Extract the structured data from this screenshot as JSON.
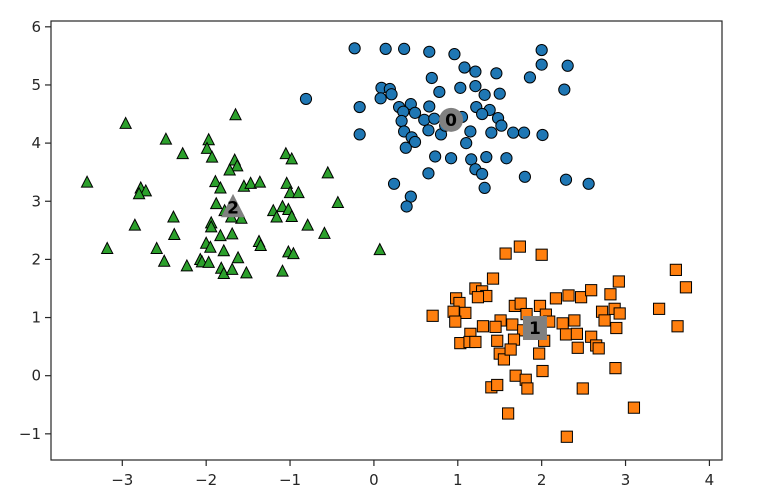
{
  "chart_data": {
    "type": "scatter",
    "title": "",
    "xlabel": "",
    "ylabel": "",
    "xlim": [
      -3.85,
      4.15
    ],
    "ylim": [
      -1.45,
      6.1
    ],
    "xticks": [
      -3,
      -2,
      -1,
      0,
      1,
      2,
      3,
      4
    ],
    "yticks": [
      -1,
      0,
      1,
      2,
      3,
      4,
      5,
      6
    ],
    "xtick_labels": [
      "−3",
      "−2",
      "−1",
      "0",
      "1",
      "2",
      "3",
      "4"
    ],
    "ytick_labels": [
      "−1",
      "0",
      "1",
      "2",
      "3",
      "4",
      "5",
      "6"
    ],
    "grid": false,
    "legend": "none",
    "series": [
      {
        "marker": "circle",
        "color": "#1f77b4",
        "points": [
          [
            -0.23,
            5.63
          ],
          [
            0.14,
            5.62
          ],
          [
            0.36,
            5.62
          ],
          [
            0.66,
            5.57
          ],
          [
            0.96,
            5.53
          ],
          [
            1.08,
            5.3
          ],
          [
            1.21,
            5.23
          ],
          [
            1.46,
            5.2
          ],
          [
            2.0,
            5.6
          ],
          [
            2.0,
            5.35
          ],
          [
            2.31,
            5.33
          ],
          [
            1.86,
            5.13
          ],
          [
            2.27,
            4.92
          ],
          [
            0.09,
            4.95
          ],
          [
            0.19,
            4.93
          ],
          [
            0.21,
            4.84
          ],
          [
            0.08,
            4.77
          ],
          [
            0.69,
            5.12
          ],
          [
            0.78,
            4.88
          ],
          [
            1.03,
            4.95
          ],
          [
            1.21,
            4.98
          ],
          [
            1.32,
            4.83
          ],
          [
            1.5,
            4.85
          ],
          [
            -0.81,
            4.76
          ],
          [
            -0.17,
            4.62
          ],
          [
            0.3,
            4.62
          ],
          [
            0.44,
            4.67
          ],
          [
            0.66,
            4.63
          ],
          [
            0.35,
            4.54
          ],
          [
            0.49,
            4.52
          ],
          [
            0.33,
            4.38
          ],
          [
            0.6,
            4.4
          ],
          [
            0.72,
            4.42
          ],
          [
            1.05,
            4.45
          ],
          [
            1.22,
            4.62
          ],
          [
            1.38,
            4.57
          ],
          [
            1.29,
            4.5
          ],
          [
            1.48,
            4.43
          ],
          [
            -0.17,
            4.15
          ],
          [
            0.36,
            4.2
          ],
          [
            0.45,
            4.1
          ],
          [
            0.49,
            4.02
          ],
          [
            0.38,
            3.92
          ],
          [
            0.65,
            4.22
          ],
          [
            0.8,
            4.15
          ],
          [
            0.85,
            4.3
          ],
          [
            1.15,
            4.2
          ],
          [
            1.1,
            4.0
          ],
          [
            1.4,
            4.18
          ],
          [
            1.52,
            4.3
          ],
          [
            1.66,
            4.18
          ],
          [
            1.79,
            4.18
          ],
          [
            2.01,
            4.14
          ],
          [
            0.73,
            3.77
          ],
          [
            0.92,
            3.74
          ],
          [
            1.16,
            3.72
          ],
          [
            1.34,
            3.76
          ],
          [
            1.58,
            3.74
          ],
          [
            0.65,
            3.48
          ],
          [
            1.21,
            3.55
          ],
          [
            1.29,
            3.47
          ],
          [
            1.8,
            3.42
          ],
          [
            2.29,
            3.37
          ],
          [
            2.56,
            3.3
          ],
          [
            0.24,
            3.3
          ],
          [
            1.32,
            3.23
          ],
          [
            0.44,
            3.08
          ],
          [
            0.39,
            2.91
          ]
        ]
      },
      {
        "marker": "square",
        "color": "#ff7f0e",
        "points": [
          [
            1.74,
            2.22
          ],
          [
            1.57,
            2.1
          ],
          [
            2.0,
            2.08
          ],
          [
            1.42,
            1.67
          ],
          [
            1.21,
            1.5
          ],
          [
            1.29,
            1.45
          ],
          [
            1.34,
            1.37
          ],
          [
            1.24,
            1.35
          ],
          [
            0.98,
            1.33
          ],
          [
            1.02,
            1.25
          ],
          [
            0.95,
            1.1
          ],
          [
            0.7,
            1.03
          ],
          [
            1.09,
            1.08
          ],
          [
            0.97,
            0.93
          ],
          [
            1.51,
            0.95
          ],
          [
            1.68,
            1.2
          ],
          [
            1.75,
            1.24
          ],
          [
            1.82,
            1.06
          ],
          [
            1.98,
            1.2
          ],
          [
            2.05,
            1.05
          ],
          [
            2.17,
            1.33
          ],
          [
            2.32,
            1.38
          ],
          [
            2.47,
            1.35
          ],
          [
            2.59,
            1.47
          ],
          [
            2.82,
            1.4
          ],
          [
            2.92,
            1.62
          ],
          [
            3.4,
            1.15
          ],
          [
            3.6,
            1.82
          ],
          [
            3.72,
            1.52
          ],
          [
            2.87,
            1.15
          ],
          [
            2.72,
            1.1
          ],
          [
            2.93,
            1.07
          ],
          [
            1.3,
            0.85
          ],
          [
            1.45,
            0.84
          ],
          [
            1.65,
            0.88
          ],
          [
            1.78,
            0.78
          ],
          [
            1.93,
            0.85
          ],
          [
            2.09,
            0.93
          ],
          [
            2.25,
            0.9
          ],
          [
            2.39,
            0.95
          ],
          [
            2.75,
            0.95
          ],
          [
            2.89,
            0.82
          ],
          [
            3.62,
            0.85
          ],
          [
            1.15,
            0.72
          ],
          [
            1.03,
            0.56
          ],
          [
            1.14,
            0.58
          ],
          [
            1.21,
            0.58
          ],
          [
            1.47,
            0.6
          ],
          [
            1.67,
            0.62
          ],
          [
            2.03,
            0.6
          ],
          [
            2.29,
            0.71
          ],
          [
            2.42,
            0.72
          ],
          [
            2.59,
            0.67
          ],
          [
            2.65,
            0.52
          ],
          [
            2.68,
            0.47
          ],
          [
            2.43,
            0.48
          ],
          [
            1.5,
            0.38
          ],
          [
            1.55,
            0.28
          ],
          [
            1.63,
            0.45
          ],
          [
            1.97,
            0.38
          ],
          [
            2.01,
            0.08
          ],
          [
            2.88,
            0.13
          ],
          [
            1.69,
            0.0
          ],
          [
            1.81,
            -0.07
          ],
          [
            1.4,
            -0.2
          ],
          [
            1.47,
            -0.16
          ],
          [
            1.83,
            -0.22
          ],
          [
            2.49,
            -0.22
          ],
          [
            3.1,
            -0.55
          ],
          [
            1.6,
            -0.65
          ],
          [
            2.3,
            -1.05
          ]
        ]
      },
      {
        "marker": "triangle",
        "color": "#2ca02c",
        "points": [
          [
            -1.65,
            4.48
          ],
          [
            -2.96,
            4.33
          ],
          [
            -2.48,
            4.06
          ],
          [
            -1.97,
            4.05
          ],
          [
            -1.99,
            3.9
          ],
          [
            -2.28,
            3.81
          ],
          [
            -1.93,
            3.75
          ],
          [
            -1.05,
            3.81
          ],
          [
            -0.98,
            3.72
          ],
          [
            -1.66,
            3.7
          ],
          [
            -1.63,
            3.6
          ],
          [
            -1.72,
            3.53
          ],
          [
            -0.55,
            3.48
          ],
          [
            -3.42,
            3.32
          ],
          [
            -2.78,
            3.22
          ],
          [
            -2.72,
            3.17
          ],
          [
            -2.8,
            3.12
          ],
          [
            -1.89,
            3.33
          ],
          [
            -1.83,
            3.22
          ],
          [
            -1.55,
            3.25
          ],
          [
            -1.47,
            3.3
          ],
          [
            -1.36,
            3.32
          ],
          [
            -1.04,
            3.3
          ],
          [
            -1.0,
            3.14
          ],
          [
            -0.9,
            3.14
          ],
          [
            -0.43,
            2.97
          ],
          [
            -1.88,
            2.95
          ],
          [
            -1.78,
            2.83
          ],
          [
            -1.94,
            2.62
          ],
          [
            -1.94,
            2.55
          ],
          [
            -1.2,
            2.83
          ],
          [
            -1.09,
            2.9
          ],
          [
            -1.16,
            2.72
          ],
          [
            -1.02,
            2.85
          ],
          [
            -0.98,
            2.73
          ],
          [
            -2.39,
            2.72
          ],
          [
            -2.85,
            2.58
          ],
          [
            -1.58,
            2.7
          ],
          [
            -1.7,
            2.72
          ],
          [
            -0.79,
            2.58
          ],
          [
            -0.59,
            2.44
          ],
          [
            -1.83,
            2.4
          ],
          [
            -1.69,
            2.43
          ],
          [
            -2.0,
            2.27
          ],
          [
            -1.95,
            2.2
          ],
          [
            -1.37,
            2.3
          ],
          [
            -1.35,
            2.23
          ],
          [
            -2.38,
            2.42
          ],
          [
            -3.18,
            2.18
          ],
          [
            -2.59,
            2.18
          ],
          [
            -1.79,
            2.14
          ],
          [
            -1.02,
            2.12
          ],
          [
            -0.96,
            2.09
          ],
          [
            0.07,
            2.16
          ],
          [
            -2.5,
            1.96
          ],
          [
            -2.07,
            1.99
          ],
          [
            -2.23,
            1.88
          ],
          [
            -2.05,
            1.95
          ],
          [
            -1.97,
            1.94
          ],
          [
            -1.82,
            1.84
          ],
          [
            -1.79,
            1.75
          ],
          [
            -1.69,
            1.82
          ],
          [
            -1.52,
            1.76
          ],
          [
            -1.09,
            1.79
          ],
          [
            -1.62,
            2.02
          ]
        ]
      }
    ],
    "centers": [
      {
        "label": "0",
        "x": 0.92,
        "y": 4.4
      },
      {
        "label": "1",
        "x": 1.92,
        "y": 0.82
      },
      {
        "label": "2",
        "x": -1.68,
        "y": 2.89
      }
    ]
  }
}
